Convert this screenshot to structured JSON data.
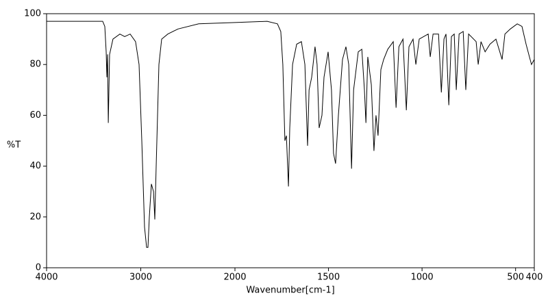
{
  "chart_data": {
    "type": "line",
    "xlabel": "Wavenumber[cm-1]",
    "ylabel": "%T",
    "x": [
      4000,
      3404,
      3382,
      3367,
      3360,
      3353,
      3345,
      3331,
      3295,
      3222,
      3171,
      3113,
      3055,
      3018,
      2989,
      2960,
      2938,
      2924,
      2909,
      2887,
      2865,
      2851,
      2836,
      2807,
      2778,
      2713,
      2604,
      2385,
      2022,
      1828,
      1773,
      1755,
      1744,
      1733,
      1725,
      1714,
      1707,
      1692,
      1670,
      1645,
      1626,
      1612,
      1604,
      1590,
      1572,
      1561,
      1550,
      1535,
      1524,
      1502,
      1484,
      1473,
      1462,
      1447,
      1425,
      1407,
      1392,
      1377,
      1366,
      1341,
      1322,
      1308,
      1300,
      1290,
      1271,
      1257,
      1246,
      1235,
      1220,
      1205,
      1183,
      1154,
      1139,
      1124,
      1102,
      1084,
      1070,
      1048,
      1033,
      1015,
      967,
      956,
      941,
      912,
      897,
      883,
      872,
      857,
      843,
      828,
      817,
      802,
      780,
      766,
      751,
      711,
      700,
      685,
      663,
      637,
      605,
      572,
      557,
      528,
      491,
      466,
      444,
      426,
      415,
      400
    ],
    "values": [
      97,
      97,
      95,
      85,
      75,
      84,
      57,
      84,
      90,
      92,
      91,
      92,
      89,
      80,
      50,
      16,
      8,
      8,
      20,
      33,
      30,
      19,
      40,
      80,
      90,
      92,
      94,
      96,
      96.5,
      97,
      96,
      93,
      80,
      50,
      52,
      32,
      55,
      80,
      88,
      89,
      80,
      48,
      70,
      75,
      87,
      80,
      55,
      60,
      75,
      85,
      70,
      45,
      41,
      60,
      82,
      87,
      80,
      39,
      70,
      85,
      86,
      70,
      57,
      83,
      72,
      46,
      60,
      52,
      78,
      82,
      86,
      89,
      63,
      87,
      90,
      62,
      87,
      90,
      80,
      90,
      92,
      83,
      92,
      92,
      69,
      90,
      92,
      64,
      91,
      92,
      70,
      92,
      93,
      70,
      92,
      89,
      80,
      89,
      85,
      88,
      90,
      82,
      92,
      94,
      96,
      95,
      88,
      83,
      80,
      82
    ],
    "color": "#000000",
    "xlim": [
      4000,
      400
    ],
    "x_scale_change": 2000,
    "xticks": [
      4000,
      3000,
      2000,
      1500,
      1000,
      500,
      400
    ],
    "ylim": [
      0,
      100
    ],
    "yticks": [
      0,
      20,
      40,
      60,
      80,
      100
    ]
  }
}
